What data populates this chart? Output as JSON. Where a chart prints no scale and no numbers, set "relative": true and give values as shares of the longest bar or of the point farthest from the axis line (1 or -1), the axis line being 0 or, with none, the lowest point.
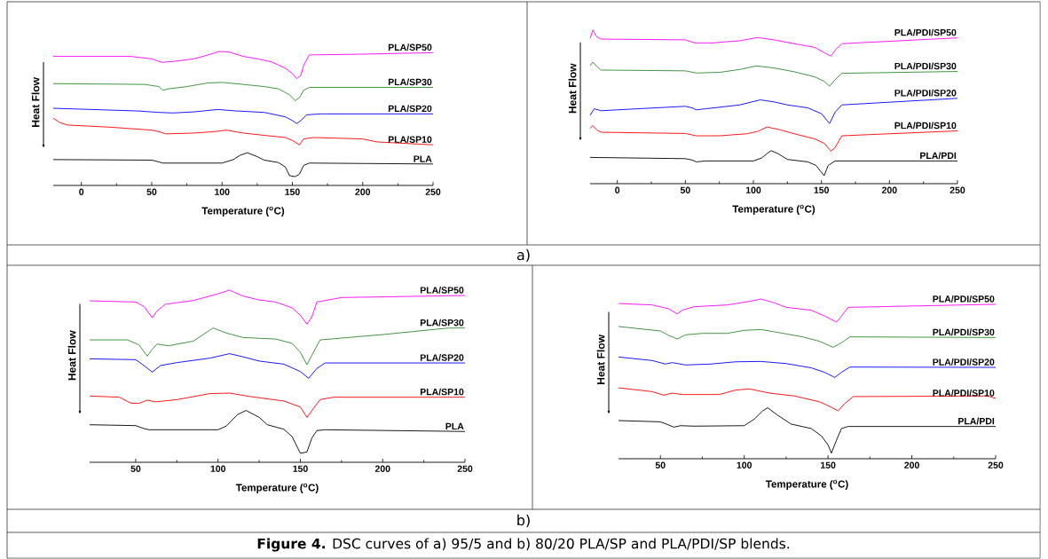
{
  "chart_data": [
    {
      "type": "line",
      "relative": true,
      "xlabel": "Temperature ($^{o}$C)",
      "ylabel": "Heat Flow",
      "xlim": [
        -20,
        250
      ],
      "xticks": [
        0,
        50,
        100,
        150,
        200,
        250
      ],
      "marker": "none",
      "annotations": [
        "a)"
      ],
      "series": [
        {
          "name": "PLA",
          "color": "#000000",
          "x": [
            -20,
            50,
            55,
            58,
            100,
            108,
            113,
            118,
            125,
            130,
            140,
            145,
            148,
            152,
            155,
            158,
            162,
            250
          ],
          "values": [
            0.193,
            0.189,
            0.176,
            0.167,
            0.167,
            0.193,
            0.226,
            0.244,
            0.215,
            0.189,
            0.171,
            0.138,
            0.073,
            0.066,
            0.084,
            0.149,
            0.167,
            0.16
          ]
        },
        {
          "name": "PLA/SP10",
          "color": "#ff0000",
          "x": [
            -20,
            -15,
            -10,
            20,
            50,
            55,
            60,
            80,
            95,
            103,
            115,
            130,
            145,
            150,
            155,
            158,
            165,
            200,
            210,
            250
          ],
          "values": [
            0.501,
            0.468,
            0.451,
            0.435,
            0.413,
            0.402,
            0.385,
            0.391,
            0.402,
            0.413,
            0.391,
            0.374,
            0.358,
            0.336,
            0.303,
            0.347,
            0.358,
            0.347,
            0.325,
            0.303
          ]
        },
        {
          "name": "PLA/SP20",
          "color": "#0000ff",
          "x": [
            -20,
            40,
            55,
            65,
            80,
            97,
            110,
            130,
            145,
            150,
            153,
            156,
            160,
            170,
            250
          ],
          "values": [
            0.576,
            0.556,
            0.545,
            0.541,
            0.549,
            0.567,
            0.556,
            0.545,
            0.512,
            0.484,
            0.462,
            0.484,
            0.527,
            0.534,
            0.534
          ]
        },
        {
          "name": "PLA/SP30",
          "color": "#2e8b2e",
          "x": [
            -20,
            45,
            55,
            58,
            62,
            75,
            90,
            100,
            115,
            130,
            140,
            148,
            152,
            155,
            158,
            162,
            250
          ],
          "values": [
            0.76,
            0.754,
            0.738,
            0.71,
            0.721,
            0.738,
            0.765,
            0.769,
            0.754,
            0.738,
            0.721,
            0.677,
            0.633,
            0.655,
            0.71,
            0.732,
            0.732
          ]
        },
        {
          "name": "PLA/SP50",
          "color": "#ff00ff",
          "x": [
            -20,
            35,
            50,
            57,
            65,
            80,
            90,
            98,
            105,
            115,
            125,
            135,
            145,
            150,
            153,
            156,
            158,
            162,
            200,
            250
          ],
          "values": [
            0.963,
            0.963,
            0.945,
            0.919,
            0.925,
            0.945,
            0.974,
            1.0,
            0.996,
            0.963,
            0.945,
            0.923,
            0.875,
            0.835,
            0.798,
            0.82,
            0.897,
            0.974,
            0.98,
            0.991
          ]
        }
      ]
    },
    {
      "type": "line",
      "relative": true,
      "xlabel": "Temperature ($^{o}$C)",
      "ylabel": "Heat Flow",
      "xlim": [
        -20,
        250
      ],
      "xticks": [
        0,
        50,
        100,
        150,
        200,
        250
      ],
      "marker": "none",
      "series": [
        {
          "name": "PLA/PDI",
          "color": "#000000",
          "x": [
            -20,
            50,
            55,
            58,
            65,
            100,
            106,
            110,
            113,
            118,
            125,
            140,
            146,
            149,
            152,
            155,
            160,
            250
          ],
          "values": [
            0.171,
            0.163,
            0.154,
            0.142,
            0.148,
            0.148,
            0.167,
            0.196,
            0.215,
            0.196,
            0.158,
            0.142,
            0.119,
            0.085,
            0.052,
            0.119,
            0.148,
            0.148
          ]
        },
        {
          "name": "PLA/PDI/SP10",
          "color": "#ff0000",
          "x": [
            -20,
            -18,
            -15,
            -12,
            50,
            58,
            75,
            95,
            103,
            110,
            120,
            130,
            145,
            152,
            157,
            160,
            165,
            250
          ],
          "values": [
            0.36,
            0.379,
            0.35,
            0.335,
            0.327,
            0.312,
            0.312,
            0.325,
            0.34,
            0.369,
            0.35,
            0.325,
            0.292,
            0.263,
            0.212,
            0.235,
            0.312,
            0.344
          ]
        },
        {
          "name": "PLA/PDI/SP20",
          "color": "#0000ff",
          "x": [
            -20,
            -17,
            -12,
            0,
            50,
            55,
            58,
            65,
            90,
            105,
            115,
            125,
            140,
            150,
            156,
            160,
            165,
            250
          ],
          "values": [
            0.446,
            0.488,
            0.475,
            0.481,
            0.504,
            0.494,
            0.481,
            0.488,
            0.513,
            0.546,
            0.533,
            0.513,
            0.494,
            0.456,
            0.392,
            0.465,
            0.513,
            0.556
          ]
        },
        {
          "name": "PLA/PDI/SP30",
          "color": "#2e8b2e",
          "x": [
            -20,
            -18,
            -15,
            -12,
            50,
            58,
            75,
            90,
            102,
            115,
            130,
            145,
            152,
            156,
            160,
            165,
            250
          ],
          "values": [
            0.769,
            0.792,
            0.763,
            0.74,
            0.735,
            0.721,
            0.725,
            0.744,
            0.767,
            0.754,
            0.729,
            0.696,
            0.667,
            0.635,
            0.677,
            0.719,
            0.731
          ]
        },
        {
          "name": "PLA/PDI/SP50",
          "color": "#ff00ff",
          "x": [
            -20,
            -18,
            -15,
            -12,
            50,
            57,
            70,
            90,
            103,
            115,
            130,
            145,
            152,
            157,
            160,
            165,
            250
          ],
          "values": [
            0.946,
            1.0,
            0.956,
            0.942,
            0.937,
            0.917,
            0.917,
            0.931,
            0.952,
            0.937,
            0.912,
            0.888,
            0.854,
            0.831,
            0.869,
            0.912,
            0.95
          ]
        }
      ]
    },
    {
      "type": "line",
      "relative": true,
      "xlabel": "Temperature ($^{o}$C)",
      "ylabel": "Heat Flow",
      "xlim": [
        22,
        250
      ],
      "xticks": [
        50,
        100,
        150,
        200,
        250
      ],
      "marker": "none",
      "annotations": [
        "b)"
      ],
      "series": [
        {
          "name": "PLA",
          "color": "#000000",
          "x": [
            22,
            50,
            55,
            58,
            100,
            105,
            112,
            117,
            125,
            130,
            140,
            145,
            150,
            154,
            157,
            160,
            165,
            250
          ],
          "values": [
            0.218,
            0.213,
            0.196,
            0.189,
            0.189,
            0.21,
            0.278,
            0.301,
            0.261,
            0.218,
            0.192,
            0.149,
            0.052,
            0.06,
            0.141,
            0.184,
            0.189,
            0.179
          ]
        },
        {
          "name": "PLA/SP10",
          "color": "#ff0000",
          "x": [
            22,
            40,
            47,
            52,
            57,
            62,
            75,
            95,
            107,
            120,
            140,
            150,
            154,
            158,
            162,
            170,
            250
          ],
          "values": [
            0.385,
            0.378,
            0.344,
            0.342,
            0.361,
            0.351,
            0.364,
            0.399,
            0.402,
            0.381,
            0.356,
            0.321,
            0.261,
            0.313,
            0.364,
            0.378,
            0.378
          ]
        },
        {
          "name": "PLA/SP20",
          "color": "#0000ff",
          "x": [
            22,
            50,
            55,
            60,
            65,
            75,
            95,
            107,
            115,
            125,
            140,
            150,
            155,
            160,
            165,
            250
          ],
          "values": [
            0.601,
            0.596,
            0.562,
            0.524,
            0.562,
            0.579,
            0.605,
            0.631,
            0.613,
            0.588,
            0.57,
            0.527,
            0.488,
            0.545,
            0.577,
            0.577
          ]
        },
        {
          "name": "PLA/SP30",
          "color": "#2e8b2e",
          "x": [
            22,
            45,
            52,
            57,
            60,
            63,
            70,
            85,
            97,
            105,
            115,
            135,
            145,
            150,
            154,
            157,
            162,
            200,
            240,
            250
          ],
          "values": [
            0.711,
            0.711,
            0.682,
            0.617,
            0.656,
            0.687,
            0.677,
            0.704,
            0.78,
            0.751,
            0.725,
            0.716,
            0.691,
            0.639,
            0.567,
            0.622,
            0.711,
            0.742,
            0.78,
            0.78
          ]
        },
        {
          "name": "PLA/SP50",
          "color": "#ff00ff",
          "x": [
            22,
            50,
            55,
            60,
            63,
            68,
            85,
            100,
            107,
            115,
            125,
            135,
            145,
            150,
            154,
            157,
            160,
            175,
            250
          ],
          "values": [
            0.938,
            0.931,
            0.905,
            0.84,
            0.88,
            0.918,
            0.94,
            0.979,
            1.0,
            0.966,
            0.943,
            0.931,
            0.897,
            0.854,
            0.802,
            0.845,
            0.931,
            0.957,
            0.969
          ]
        }
      ]
    },
    {
      "type": "line",
      "relative": true,
      "xlabel": "Temperature ($^{o}$C)",
      "ylabel": "Heat Flow",
      "xlim": [
        25,
        250
      ],
      "xticks": [
        50,
        100,
        150,
        200,
        250
      ],
      "marker": "none",
      "annotations": [
        "**Figure 4.** DSC curves of a) 95/5 and b) 80/20 PLA/SP and PLA/PDI/SP blends."
      ],
      "series": [
        {
          "name": "PLA/PDI",
          "color": "#000000",
          "x": [
            25,
            50,
            55,
            58,
            62,
            70,
            100,
            106,
            111,
            114,
            120,
            128,
            140,
            146,
            150,
            152,
            155,
            158,
            162,
            250
          ],
          "values": [
            0.239,
            0.231,
            0.211,
            0.198,
            0.207,
            0.204,
            0.207,
            0.248,
            0.3,
            0.319,
            0.272,
            0.217,
            0.189,
            0.143,
            0.087,
            0.035,
            0.115,
            0.189,
            0.202,
            0.202
          ]
        },
        {
          "name": "PLA/PDI/SP10",
          "color": "#ff0000",
          "x": [
            25,
            45,
            52,
            57,
            63,
            85,
            95,
            103,
            115,
            130,
            145,
            152,
            156,
            160,
            165,
            245,
            250
          ],
          "values": [
            0.444,
            0.42,
            0.398,
            0.411,
            0.402,
            0.402,
            0.43,
            0.437,
            0.411,
            0.393,
            0.356,
            0.322,
            0.3,
            0.346,
            0.389,
            0.393,
            0.378
          ]
        },
        {
          "name": "PLA/PDI/SP20",
          "color": "#0000ff",
          "x": [
            25,
            45,
            53,
            57,
            65,
            80,
            95,
            110,
            125,
            140,
            148,
            154,
            158,
            163,
            250
          ],
          "values": [
            0.637,
            0.615,
            0.593,
            0.602,
            0.587,
            0.593,
            0.607,
            0.609,
            0.596,
            0.569,
            0.541,
            0.509,
            0.541,
            0.574,
            0.572
          ]
        },
        {
          "name": "PLA/PDI/SP30",
          "color": "#2e8b2e",
          "x": [
            25,
            50,
            55,
            60,
            65,
            75,
            90,
            100,
            110,
            120,
            135,
            145,
            153,
            158,
            163,
            250
          ],
          "values": [
            0.828,
            0.8,
            0.772,
            0.75,
            0.776,
            0.785,
            0.785,
            0.804,
            0.809,
            0.791,
            0.763,
            0.735,
            0.698,
            0.726,
            0.763,
            0.759
          ]
        },
        {
          "name": "PLA/PDI/SP50",
          "color": "#ff00ff",
          "x": [
            25,
            45,
            55,
            60,
            63,
            70,
            90,
            103,
            110,
            118,
            125,
            140,
            148,
            155,
            158,
            162,
            250
          ],
          "values": [
            0.972,
            0.963,
            0.939,
            0.907,
            0.93,
            0.952,
            0.963,
            0.985,
            1.0,
            0.976,
            0.948,
            0.93,
            0.893,
            0.856,
            0.893,
            0.948,
            0.967
          ]
        }
      ]
    }
  ]
}
